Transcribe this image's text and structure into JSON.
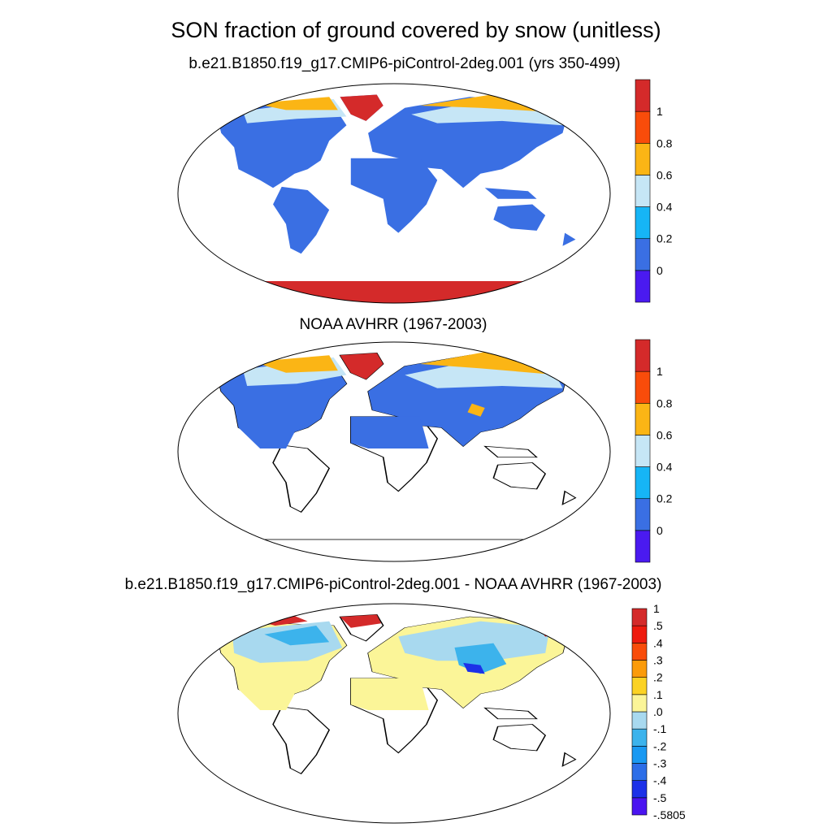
{
  "title": "SON fraction of ground covered by snow (unitless)",
  "panels": [
    {
      "subtitle": "b.e21.B1850.f19_g17.CMIP6-piControl-2deg.001 (yrs 350-499)",
      "colorbar": {
        "colors": [
          "#4a1af0",
          "#3a6fe3",
          "#16b5f6",
          "#c6e6f6",
          "#fbb515",
          "#f94c0a",
          "#d42a2a"
        ],
        "labels": [
          "0",
          "0.2",
          "0.4",
          "0.6",
          "0.8",
          "1"
        ]
      }
    },
    {
      "subtitle": "NOAA AVHRR (1967-2003)",
      "colorbar": {
        "colors": [
          "#4a1af0",
          "#3a6fe3",
          "#16b5f6",
          "#c6e6f6",
          "#fbb515",
          "#f94c0a",
          "#d42a2a"
        ],
        "labels": [
          "0",
          "0.2",
          "0.4",
          "0.6",
          "0.8",
          "1"
        ]
      }
    },
    {
      "subtitle": "b.e21.B1850.f19_g17.CMIP6-piControl-2deg.001 - NOAA AVHRR (1967-2003)",
      "colorbar": {
        "colors": [
          "#4a14f0",
          "#1c31e8",
          "#2c6ee8",
          "#1999f2",
          "#3cb3ec",
          "#a8d9ef",
          "#fbf598",
          "#fbd224",
          "#fb9b0a",
          "#f94c0a",
          "#ee1a0e",
          "#d42a2a"
        ],
        "labels": [
          "-.5805",
          "-.5",
          "-.4",
          "-.3",
          "-.2",
          "-.1",
          ".0",
          ".1",
          ".2",
          ".3",
          ".4",
          ".5",
          "1"
        ]
      }
    }
  ]
}
